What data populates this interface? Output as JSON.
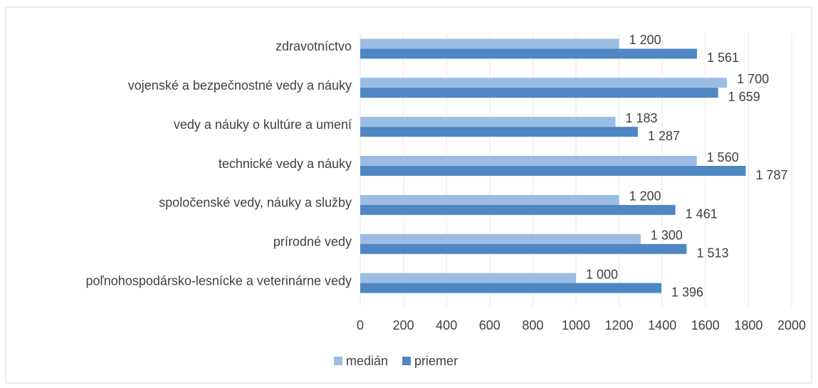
{
  "chart_data": {
    "type": "hbar",
    "categories": [
      "zdravotníctvo",
      "vojenské a bezpečnostné vedy a náuky",
      "vedy a náuky o kultúre a umení",
      "technické vedy a náuky",
      "spoločenské vedy, náuky a služby",
      "prírodné vedy",
      "poľnohospodársko-lesnícke a veterinárne vedy"
    ],
    "series": [
      {
        "name": "medián",
        "color": "#9cbde3",
        "values": [
          1200,
          1700,
          1183,
          1560,
          1200,
          1300,
          1000
        ],
        "value_labels": [
          "1 200",
          "1 700",
          "1 183",
          "1 560",
          "1 200",
          "1 300",
          "1 000"
        ]
      },
      {
        "name": "priemer",
        "color": "#4f86c4",
        "values": [
          1561,
          1659,
          1287,
          1787,
          1461,
          1513,
          1396
        ],
        "value_labels": [
          "1 561",
          "1 659",
          "1 287",
          "1 787",
          "1 461",
          "1 513",
          "1 396"
        ]
      }
    ],
    "xlim": [
      0,
      2000
    ],
    "xticks": [
      0,
      200,
      400,
      600,
      800,
      1000,
      1200,
      1400,
      1600,
      1800,
      2000
    ],
    "grid": true,
    "legend": "bottom"
  }
}
